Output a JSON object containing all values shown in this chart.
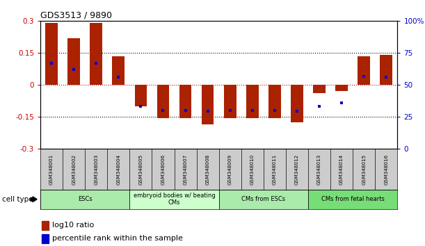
{
  "title": "GDS3513 / 9890",
  "samples": [
    "GSM348001",
    "GSM348002",
    "GSM348003",
    "GSM348004",
    "GSM348005",
    "GSM348006",
    "GSM348007",
    "GSM348008",
    "GSM348009",
    "GSM348010",
    "GSM348011",
    "GSM348012",
    "GSM348013",
    "GSM348014",
    "GSM348015",
    "GSM348016"
  ],
  "log10_ratio": [
    0.29,
    0.22,
    0.29,
    0.135,
    -0.1,
    -0.155,
    -0.155,
    -0.185,
    -0.155,
    -0.155,
    -0.155,
    -0.175,
    -0.04,
    -0.03,
    0.135,
    0.14
  ],
  "percentile_rank_pct": [
    67,
    62,
    67,
    56,
    33,
    30,
    30,
    29.5,
    30,
    30,
    30,
    29.5,
    33,
    36,
    56.5,
    56
  ],
  "ylim_left": [
    -0.3,
    0.3
  ],
  "ylim_right": [
    0,
    100
  ],
  "yticks_left": [
    -0.3,
    -0.15,
    0,
    0.15,
    0.3
  ],
  "yticks_right": [
    0,
    25,
    50,
    75,
    100
  ],
  "ytick_labels_left": [
    "-0.3",
    "-0.15",
    "0",
    "0.15",
    "0.3"
  ],
  "ytick_labels_right": [
    "0",
    "25",
    "50",
    "75",
    "100%"
  ],
  "hline_zero_color": "#cc0000",
  "hline_other_color": "#000000",
  "bar_color": "#aa2200",
  "dot_color": "#0000cc",
  "bar_width": 0.55,
  "cell_groups": [
    {
      "label": "ESCs",
      "start": 0,
      "end": 3,
      "color": "#aaeaaa"
    },
    {
      "label": "embryoid bodies w/ beating\nCMs",
      "start": 4,
      "end": 7,
      "color": "#ccffcc"
    },
    {
      "label": "CMs from ESCs",
      "start": 8,
      "end": 11,
      "color": "#aaeaaa"
    },
    {
      "label": "CMs from fetal hearts",
      "start": 12,
      "end": 15,
      "color": "#77dd77"
    }
  ],
  "cell_type_label": "cell type",
  "legend_bar_label": "log10 ratio",
  "legend_dot_label": "percentile rank within the sample",
  "bg_color": "#ffffff",
  "sample_bg_color": "#cccccc"
}
